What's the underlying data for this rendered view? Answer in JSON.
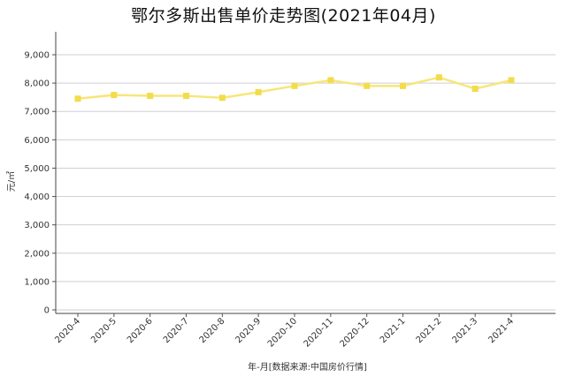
{
  "chart_data": {
    "type": "line",
    "title": "鄂尔多斯出售单价走势图(2021年04月)",
    "xlabel": "年-月[数据来源:中国房价行情]",
    "ylabel": "元/㎡",
    "categories": [
      "2020-4",
      "2020-5",
      "2020-6",
      "2020-7",
      "2020-8",
      "2020-9",
      "2020-10",
      "2020-11",
      "2020-12",
      "2021-1",
      "2021-2",
      "2021-3",
      "2021-4"
    ],
    "series": [
      {
        "values": [
          7450,
          7580,
          7550,
          7550,
          7480,
          7680,
          7900,
          8100,
          7900,
          7900,
          8200,
          7800,
          8100
        ]
      }
    ],
    "ylim": [
      0,
      9800
    ],
    "yticks": [
      0,
      1000,
      2000,
      3000,
      4000,
      5000,
      6000,
      7000,
      8000,
      9000
    ],
    "ytick_labels": [
      "0",
      "1,000",
      "2,000",
      "3,000",
      "4,000",
      "5,000",
      "6,000",
      "7,000",
      "8,000",
      "9,000"
    ],
    "grid": true,
    "legend": "none",
    "line_color": "#f7e67a",
    "marker_color": "#f2dc4a"
  }
}
